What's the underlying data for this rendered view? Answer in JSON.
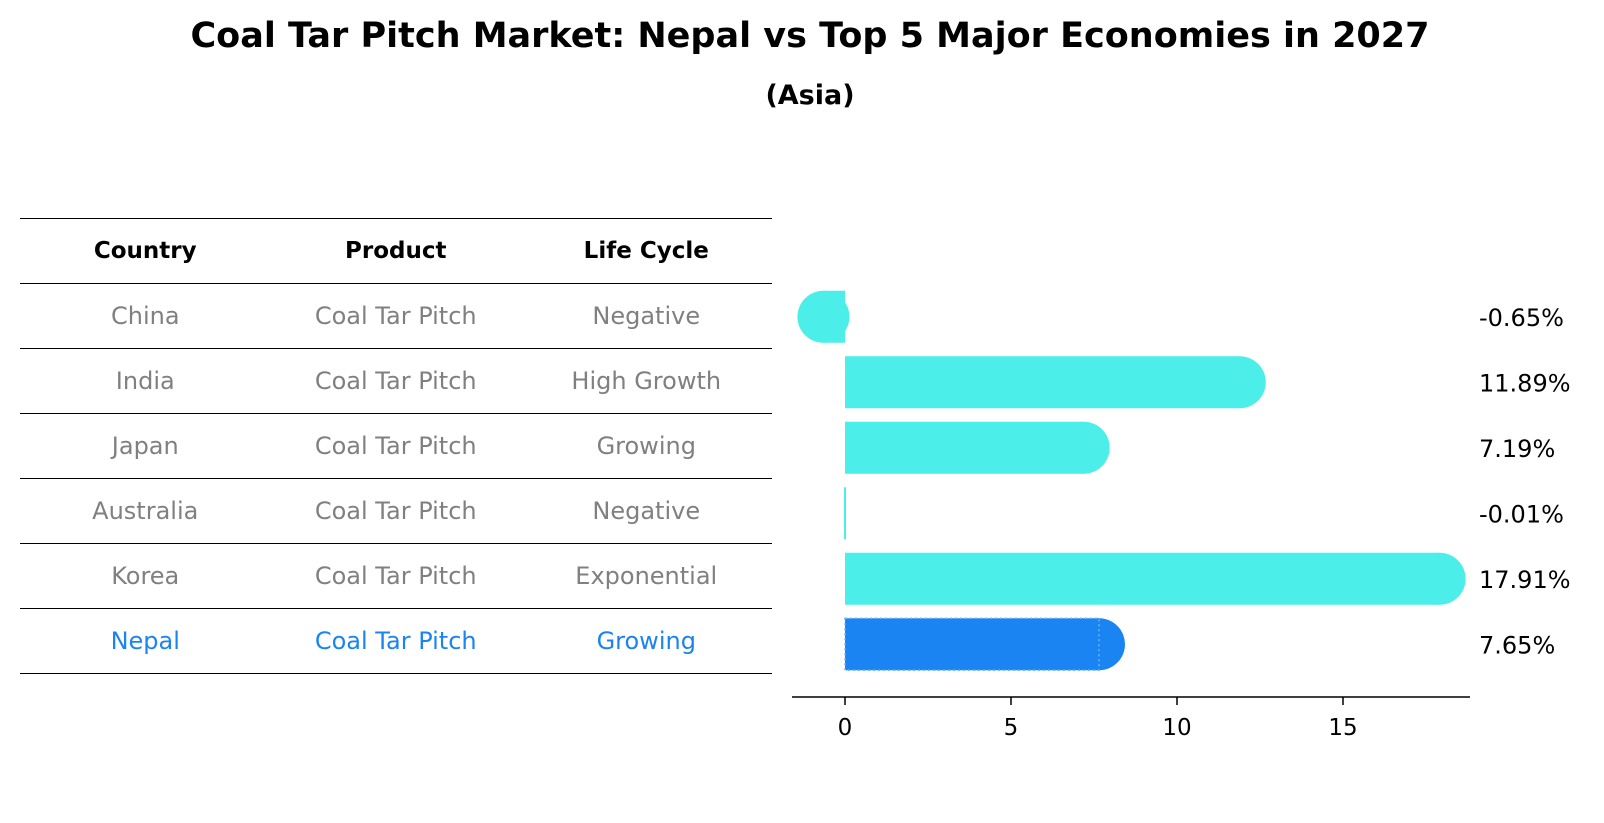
{
  "chart_data": {
    "type": "bar",
    "orientation": "horizontal",
    "title": "Coal Tar Pitch Market: Nepal vs Top 5 Major Economies in 2027",
    "subtitle": "(Asia)",
    "table": {
      "columns": [
        "Country",
        "Product",
        "Life Cycle"
      ],
      "rows": [
        [
          "China",
          "Coal Tar Pitch",
          "Negative"
        ],
        [
          "India",
          "Coal Tar Pitch",
          "High Growth"
        ],
        [
          "Japan",
          "Coal Tar Pitch",
          "Growing"
        ],
        [
          "Australia",
          "Coal Tar Pitch",
          "Negative"
        ],
        [
          "Korea",
          "Coal Tar Pitch",
          "Exponential"
        ],
        [
          "Nepal",
          "Coal Tar Pitch",
          "Growing"
        ]
      ]
    },
    "categories": [
      "China",
      "India",
      "Japan",
      "Australia",
      "Korea",
      "Nepal"
    ],
    "values": [
      -0.65,
      11.89,
      7.19,
      -0.01,
      17.91,
      7.65
    ],
    "value_labels": [
      "-0.65%",
      "11.89%",
      "7.19%",
      "-0.01%",
      "17.91%",
      "7.65%"
    ],
    "highlight": "Nepal",
    "x_ticks": [
      0,
      5,
      10,
      15
    ],
    "xlim": [
      -1.6,
      18.8
    ],
    "colors": {
      "bar": "#4CEEEA",
      "highlight_bar": "#1984F2",
      "highlight_text": "#1984F2",
      "text_muted": "#808080"
    }
  }
}
